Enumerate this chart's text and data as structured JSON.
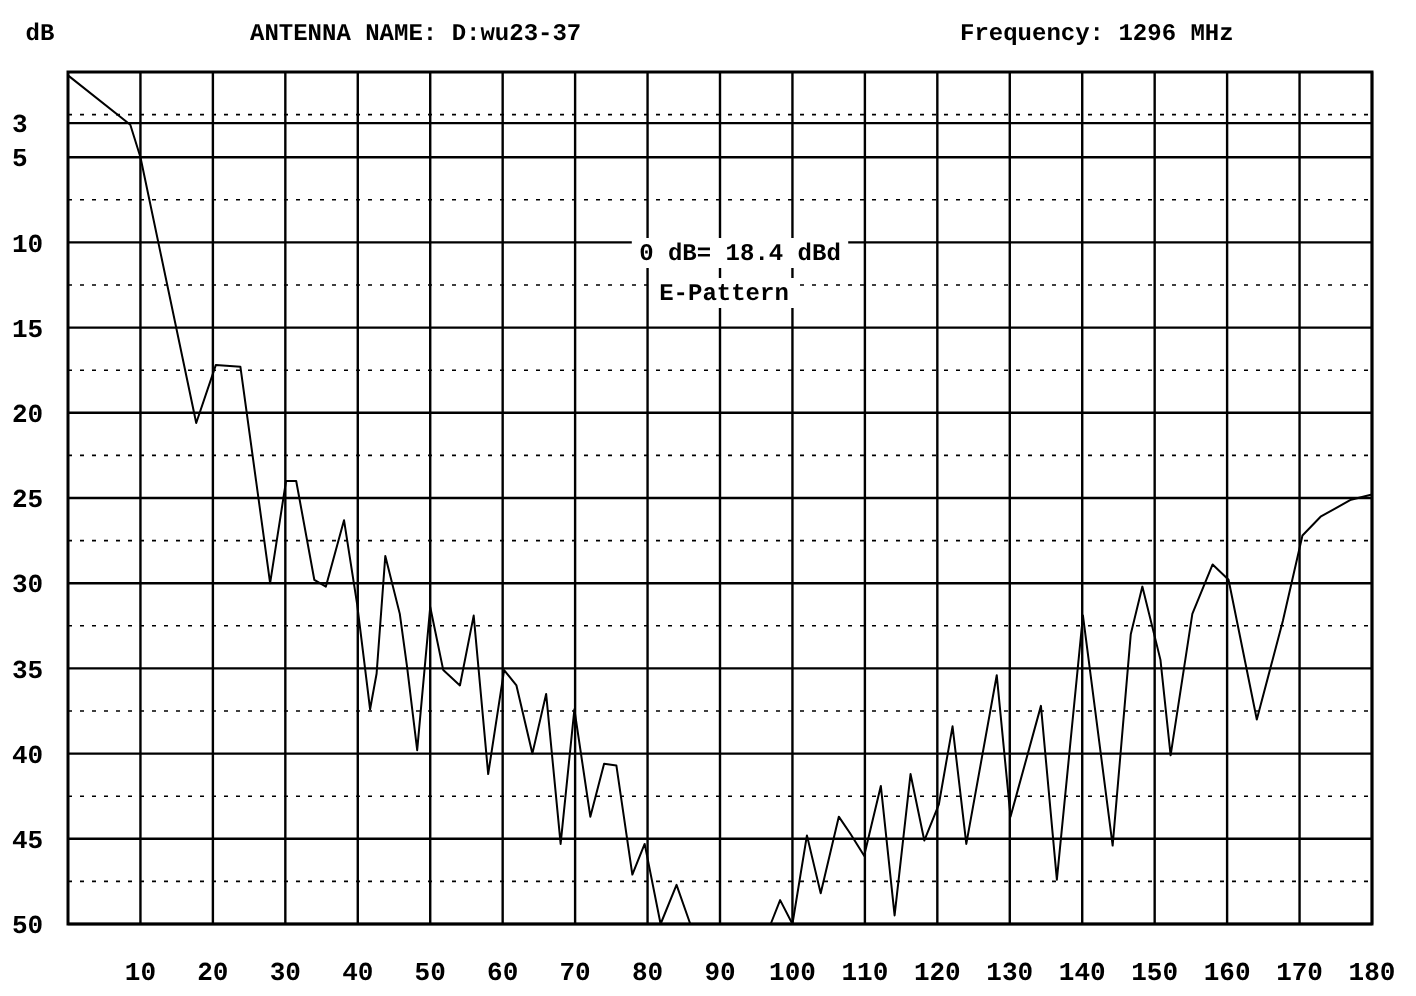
{
  "chart_data": {
    "type": "line",
    "title": "ANTENNA NAME: D:wu23-37",
    "subtitle": "Frequency: 1296  MHz",
    "ylabel": "dB",
    "annotations": [
      "0 dB= 18.4 dBd",
      "E-Pattern"
    ],
    "xlim": [
      0,
      180
    ],
    "xticks": [
      10,
      20,
      30,
      40,
      50,
      60,
      70,
      80,
      90,
      100,
      110,
      120,
      130,
      140,
      150,
      160,
      170,
      180
    ],
    "ylim": [
      50,
      0
    ],
    "yticks": [
      {
        "value": 2.5,
        "label": null
      },
      3,
      5,
      {
        "value": 7.5,
        "label": null
      },
      10,
      {
        "value": 12.5,
        "label": null
      },
      15,
      {
        "value": 17.5,
        "label": null
      },
      20,
      {
        "value": 22.5,
        "label": null
      },
      25,
      {
        "value": 27.5,
        "label": null
      },
      30,
      {
        "value": 32.5,
        "label": null
      },
      35,
      {
        "value": 37.5,
        "label": null
      },
      40,
      {
        "value": 42.5,
        "label": null
      },
      45,
      {
        "value": 47.5,
        "label": null
      },
      50
    ],
    "grid": true,
    "marker": "none",
    "line_style": "solid",
    "series": [
      {
        "color": "#000000",
        "x": [
          0,
          8.6,
          10,
          17.7,
          20.4,
          23.8,
          27.9,
          30.1,
          31.5,
          34,
          35.6,
          38.1,
          39.9,
          40.8,
          41.7,
          42.6,
          43.8,
          45.8,
          46.8,
          48.2,
          50,
          51.8,
          54.1,
          56,
          58,
          60.2,
          61.9,
          64.1,
          66,
          68,
          69.9,
          72.1,
          74,
          75.7,
          77.9,
          79.6,
          81.8,
          84,
          85.9,
          97,
          98.3,
          100,
          102,
          103.9,
          106.4,
          108,
          109.9,
          112.2,
          114.1,
          116.3,
          118.2,
          120.2,
          122.1,
          124,
          128.2,
          130.1,
          134.3,
          136.5,
          140.1,
          144.2,
          146.7,
          148.3,
          150.8,
          152.2,
          155.2,
          158,
          160.2,
          164.1,
          167.7,
          170.4,
          172.9,
          177.1,
          180
        ],
        "values": [
          0.2,
          3.1,
          5,
          20.6,
          17.2,
          17.3,
          30,
          24,
          24,
          29.8,
          30.2,
          26.3,
          31.2,
          34.3,
          37.4,
          35.3,
          28.4,
          31.8,
          34.9,
          39.8,
          31.4,
          35.1,
          36,
          31.9,
          41.2,
          35.1,
          36,
          40,
          36.5,
          45.3,
          37.4,
          43.7,
          40.6,
          40.7,
          47.1,
          45.3,
          50,
          47.7,
          50,
          50,
          48.6,
          50,
          44.8,
          48.2,
          43.7,
          44.7,
          46,
          41.9,
          49.5,
          41.2,
          45.1,
          43,
          38.4,
          45.3,
          35.4,
          43.7,
          37.2,
          47.4,
          31.9,
          45.4,
          33,
          30.2,
          34.5,
          40.1,
          31.8,
          28.9,
          29.8,
          38,
          32.2,
          27.2,
          26.1,
          25.1,
          24.8
        ]
      }
    ]
  }
}
